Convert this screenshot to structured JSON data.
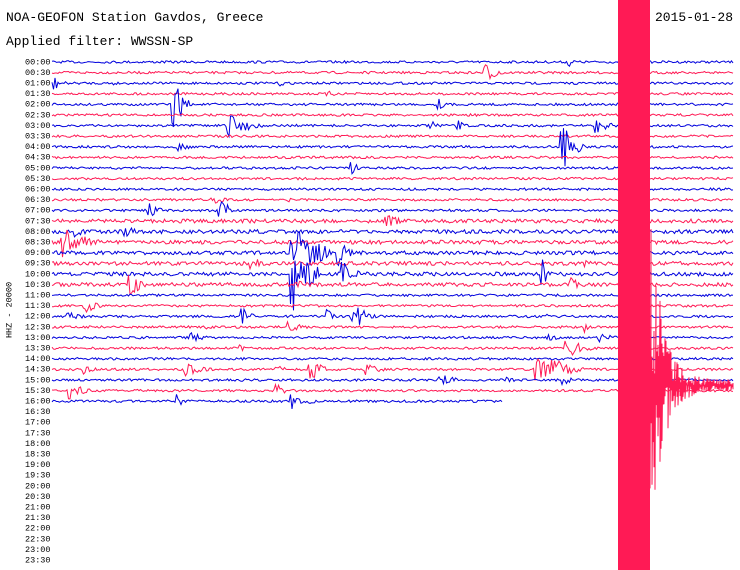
{
  "header": {
    "title": "NOA-GEOFON Station Gavdos, Greece",
    "date": "2015-01-28",
    "filter": "Applied filter: WWSSN-SP"
  },
  "axis": {
    "channel_label": "HHZ - 20000",
    "time_labels": [
      "00:00",
      "00:30",
      "01:00",
      "01:30",
      "02:00",
      "02:30",
      "03:00",
      "03:30",
      "04:00",
      "04:30",
      "05:00",
      "05:30",
      "06:00",
      "06:30",
      "07:00",
      "07:30",
      "08:00",
      "08:30",
      "09:00",
      "09:30",
      "10:00",
      "10:30",
      "11:00",
      "11:30",
      "12:00",
      "12:30",
      "13:00",
      "13:30",
      "14:00",
      "14:30",
      "15:00",
      "15:30",
      "16:00",
      "16:30",
      "17:00",
      "17:30",
      "18:00",
      "18:30",
      "19:00",
      "19:30",
      "20:00",
      "20:30",
      "21:00",
      "21:30",
      "22:00",
      "22:30",
      "23:00",
      "23:30"
    ]
  },
  "trace_colors": [
    "#0000dd",
    "#ff1a55"
  ]
}
